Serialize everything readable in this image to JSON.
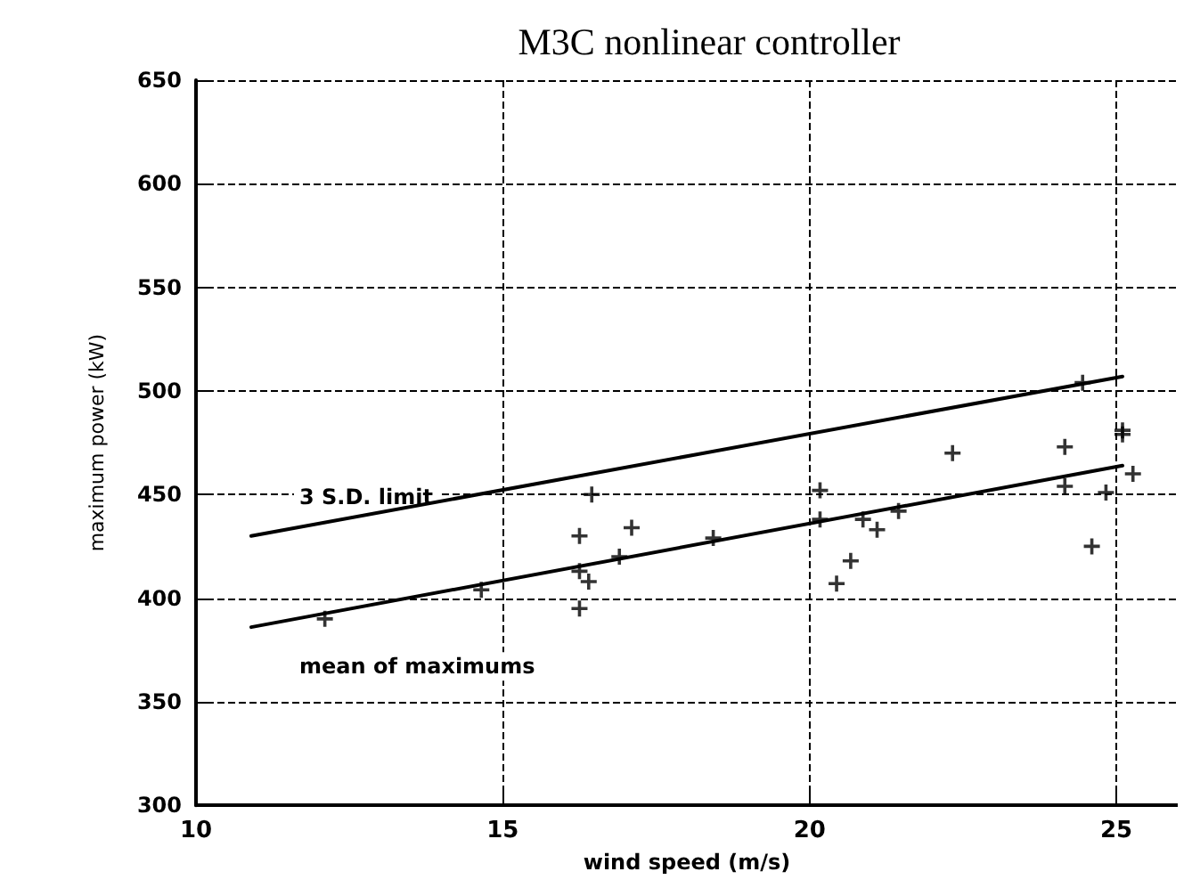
{
  "chart_data": {
    "type": "scatter",
    "title": "M3C nonlinear controller",
    "xlabel": "wind speed (m/s)",
    "ylabel": "maximum power (kW)",
    "xlim": [
      10,
      26
    ],
    "xticks": [
      10,
      15,
      20,
      25
    ],
    "ylim": [
      300,
      650
    ],
    "yticks": [
      300,
      350,
      400,
      450,
      500,
      550,
      600,
      650
    ],
    "grid": true,
    "legend": false,
    "series": [
      {
        "type": "line",
        "name": "3 S.D. limit",
        "color": "#000000",
        "marker": "none",
        "line_style": "solid",
        "x": [
          10.9,
          25.1
        ],
        "values": [
          430,
          507
        ]
      },
      {
        "type": "line",
        "name": "mean of maximums",
        "color": "#000000",
        "marker": "none",
        "line_style": "solid",
        "x": [
          10.9,
          25.1
        ],
        "values": [
          386,
          464
        ]
      },
      {
        "type": "scatter",
        "color": "#000000",
        "marker": "cross",
        "x": [
          12.1,
          14.65,
          16.25,
          17.1,
          16.45,
          16.25,
          16.4,
          16.25,
          16.9,
          18.43,
          20.17,
          20.17,
          20.87,
          21.1,
          21.45,
          20.67,
          20.44,
          22.33,
          24.16,
          24.16,
          24.83,
          24.6,
          25.1,
          25.1,
          25.27,
          24.45
        ],
        "values": [
          390,
          404,
          430,
          434,
          450,
          413,
          408,
          395,
          420,
          429,
          452,
          438,
          438,
          433,
          442,
          418,
          407,
          470,
          473,
          454,
          451,
          425,
          481,
          479,
          460,
          504
        ]
      }
    ]
  }
}
